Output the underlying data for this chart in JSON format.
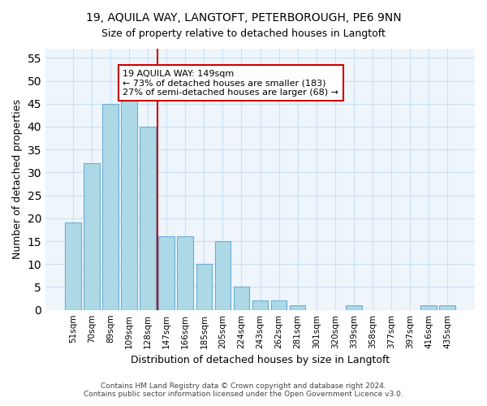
{
  "title1": "19, AQUILA WAY, LANGTOFT, PETERBOROUGH, PE6 9NN",
  "title2": "Size of property relative to detached houses in Langtoft",
  "xlabel": "Distribution of detached houses by size in Langtoft",
  "ylabel": "Number of detached properties",
  "bar_labels": [
    "51sqm",
    "70sqm",
    "89sqm",
    "109sqm",
    "128sqm",
    "147sqm",
    "166sqm",
    "185sqm",
    "205sqm",
    "224sqm",
    "243sqm",
    "262sqm",
    "281sqm",
    "301sqm",
    "320sqm",
    "339sqm",
    "358sqm",
    "377sqm",
    "397sqm",
    "416sqm",
    "435sqm"
  ],
  "bar_values": [
    19,
    32,
    45,
    46,
    40,
    16,
    16,
    10,
    15,
    5,
    2,
    2,
    1,
    0,
    0,
    1,
    0,
    0,
    0,
    1,
    1
  ],
  "bar_color": "#add8e6",
  "bar_edge_color": "#6baed6",
  "vline_x": 4.5,
  "annotation_text": "19 AQUILA WAY: 149sqm\n← 73% of detached houses are smaller (183)\n27% of semi-detached houses are larger (68) →",
  "vline_color": "#cc0000",
  "grid_color": "#cce0f0",
  "background_color": "#eef5fb",
  "footer_line1": "Contains HM Land Registry data © Crown copyright and database right 2024.",
  "footer_line2": "Contains public sector information licensed under the Open Government Licence v3.0.",
  "ylim": [
    0,
    57
  ],
  "yticks": [
    0,
    5,
    10,
    15,
    20,
    25,
    30,
    35,
    40,
    45,
    50,
    55
  ]
}
